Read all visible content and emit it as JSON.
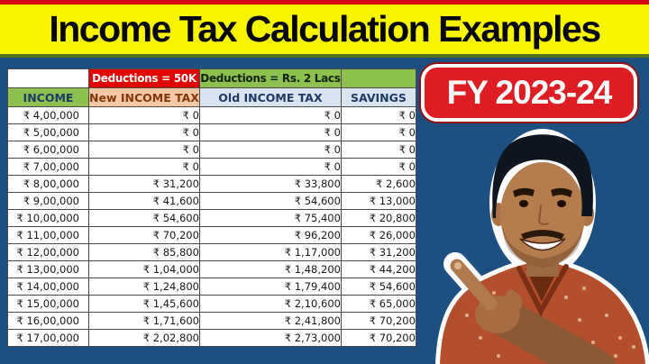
{
  "title": "Income Tax Calculation Examples",
  "badge": {
    "label": "FY 2023-24"
  },
  "table": {
    "group_headers": {
      "new_regime": "Deductions = 50K",
      "old_regime": "Deductions = Rs. 2 Lacs"
    },
    "columns": [
      "INCOME",
      "New INCOME TAX",
      "Old INCOME TAX",
      "SAVINGS"
    ],
    "rows": [
      [
        "₹ 4,00,000",
        "₹ 0",
        "₹ 0",
        "₹ 0"
      ],
      [
        "₹ 5,00,000",
        "₹ 0",
        "₹ 0",
        "₹ 0"
      ],
      [
        "₹ 6,00,000",
        "₹ 0",
        "₹ 0",
        "₹ 0"
      ],
      [
        "₹ 7,00,000",
        "₹ 0",
        "₹ 0",
        "₹ 0"
      ],
      [
        "₹ 8,00,000",
        "₹ 31,200",
        "₹ 33,800",
        "₹ 2,600"
      ],
      [
        "₹ 9,00,000",
        "₹ 41,600",
        "₹ 54,600",
        "₹ 13,000"
      ],
      [
        "₹ 10,00,000",
        "₹ 54,600",
        "₹ 75,400",
        "₹ 20,800"
      ],
      [
        "₹ 11,00,000",
        "₹ 70,200",
        "₹ 96,200",
        "₹ 26,000"
      ],
      [
        "₹ 12,00,000",
        "₹ 85,800",
        "₹ 1,17,000",
        "₹ 31,200"
      ],
      [
        "₹ 13,00,000",
        "₹ 1,04,000",
        "₹ 1,48,200",
        "₹ 44,200"
      ],
      [
        "₹ 14,00,000",
        "₹ 1,24,800",
        "₹ 1,79,400",
        "₹ 54,600"
      ],
      [
        "₹ 15,00,000",
        "₹ 1,45,600",
        "₹ 2,10,600",
        "₹ 65,000"
      ],
      [
        "₹ 16,00,000",
        "₹ 1,71,600",
        "₹ 2,41,800",
        "₹ 70,200"
      ],
      [
        "₹ 17,00,000",
        "₹ 2,02,800",
        "₹ 2,73,000",
        "₹ 70,200"
      ]
    ]
  },
  "colors": {
    "banner_bg": "#f7f400",
    "top_bar": "#d40000",
    "stage_bg": "#1d5080",
    "badge_bg": "#dd1c24",
    "group_red": "#e20000",
    "group_green": "#8ec04f",
    "header_peach": "#f4c8a6",
    "header_blue": "#d8e5f1",
    "header_text_navy": "#1f3864",
    "header_text_maroon": "#80380b"
  }
}
